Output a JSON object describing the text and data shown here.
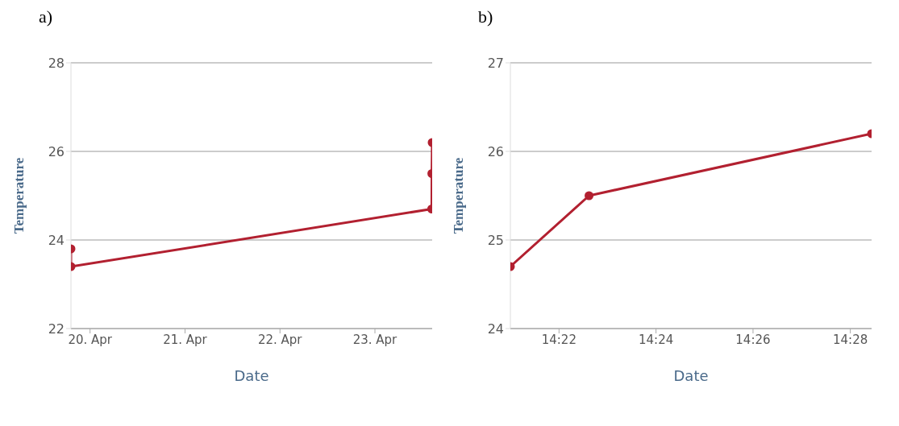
{
  "chart_data": [
    {
      "type": "line",
      "title": "a)",
      "xlabel": "Date",
      "ylabel": "Temperature",
      "x": [
        "--04-19T19:10",
        "--04-19T19:10",
        "--04-23T14:21",
        "--04-23T14:23",
        "--04-23T14:28"
      ],
      "series": [
        {
          "color": "#b22030",
          "values": [
            23.8,
            23.4,
            24.7,
            25.5,
            26.2
          ]
        }
      ],
      "xlim": [
        "--04-19T19:10",
        "--04-23T14:28"
      ],
      "xticks": [
        {
          "value": "--04-20",
          "label": "20. Apr"
        },
        {
          "value": "--04-21",
          "label": "21. Apr"
        },
        {
          "value": "--04-22",
          "label": "22. Apr"
        },
        {
          "value": "--04-23",
          "label": "23. Apr"
        }
      ],
      "ylim": [
        22,
        28
      ],
      "yticks": [
        22,
        24,
        26,
        28
      ],
      "grid": "y",
      "marker": "circle",
      "line_style": "solid",
      "legend": false
    },
    {
      "type": "line",
      "title": "b)",
      "xlabel": "Date",
      "ylabel": "Temperature",
      "x": [
        14.35,
        14.377,
        14.474
      ],
      "series": [
        {
          "color": "#b22030",
          "values": [
            24.7,
            25.5,
            26.2
          ]
        }
      ],
      "xlim": [
        14.35,
        14.474
      ],
      "xticks": [
        {
          "value": 14.3667,
          "label": "14:22"
        },
        {
          "value": 14.4,
          "label": "14:24"
        },
        {
          "value": 14.4333,
          "label": "14:26"
        },
        {
          "value": 14.4667,
          "label": "14:28"
        }
      ],
      "ylim": [
        24,
        27
      ],
      "yticks": [
        24,
        25,
        26,
        27
      ],
      "grid": "y",
      "marker": "circle",
      "line_style": "solid",
      "legend": false
    }
  ]
}
